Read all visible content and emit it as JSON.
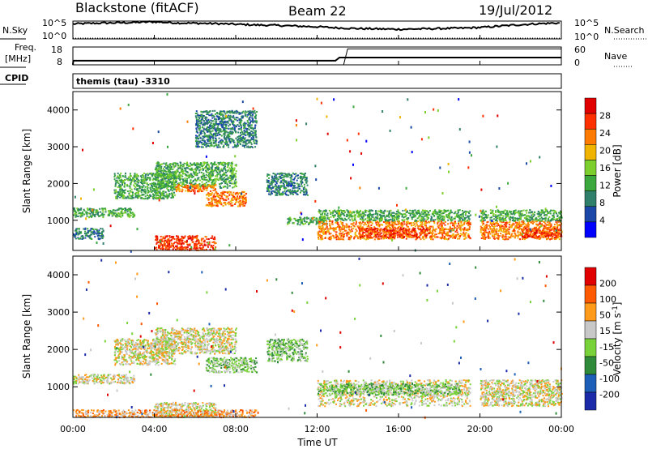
{
  "header": {
    "radar": "Blackstone (fitACF)",
    "beam": "Beam 22",
    "date": "19/Jul/2012"
  },
  "params": {
    "nsky_label": "N.Sky",
    "nsearch_label": "N.Search",
    "freq_label_line1": "Freq.",
    "freq_label_line2": "[MHz]",
    "nave_label": "Nave",
    "cpid_label": "CPID",
    "cpid_text": "themis (tau) -3310",
    "noise_ticks_left": [
      "10^5",
      "10^0"
    ],
    "noise_ticks_right": [
      "10^5",
      "10^0"
    ],
    "freq_ticks": [
      "18",
      "8"
    ],
    "nave_ticks": [
      "60",
      "0"
    ]
  },
  "colors": {
    "power": [
      "#0000ff",
      "#1a47a8",
      "#2f7f6a",
      "#3aa83c",
      "#7ccf2c",
      "#f0b400",
      "#ff7a00",
      "#ff3000",
      "#e00000"
    ],
    "velocity": [
      "#1a2aa8",
      "#1d5fb8",
      "#2f8a3a",
      "#7ad23a",
      "#c8c8c8",
      "#ff9a1a",
      "#ff5a00",
      "#e00000"
    ]
  },
  "chart_data": [
    {
      "type": "line",
      "name": "noise-panel",
      "xlim": [
        0,
        24
      ],
      "series": [
        {
          "name": "N.Sky",
          "x": [
            0,
            1,
            2,
            3,
            4,
            5,
            6,
            7,
            8,
            9,
            10,
            11,
            12,
            13,
            14,
            15,
            16,
            17,
            18,
            19,
            20,
            21,
            22,
            23,
            24
          ],
          "values": [
            4.2,
            4.4,
            4.5,
            4.6,
            4.8,
            4.5,
            4.4,
            4.3,
            4.1,
            3.9,
            3.8,
            3.6,
            3.4,
            3.1,
            2.9,
            2.8,
            2.7,
            2.8,
            2.9,
            3.0,
            3.2,
            3.6,
            4.0,
            4.3,
            4.5
          ]
        },
        {
          "name": "N.Search",
          "x": [
            0,
            24
          ],
          "values": [
            0,
            0
          ]
        }
      ]
    },
    {
      "type": "line",
      "name": "frequency-panel",
      "xlim": [
        0,
        24
      ],
      "series": [
        {
          "name": "Freq.",
          "x": [
            0,
            0.02,
            12.9,
            13.1,
            24
          ],
          "values": [
            8,
            10.3,
            10.3,
            12.1,
            12.1
          ]
        },
        {
          "name": "Nave",
          "x": [
            0,
            13.3,
            13.5,
            24
          ],
          "values": [
            0,
            0,
            54,
            54
          ]
        }
      ]
    },
    {
      "type": "heatmap",
      "name": "power-panel",
      "xlabel": "",
      "ylabel": "Slant Range [km]",
      "xlim": [
        0,
        24
      ],
      "ylim": [
        180,
        4500
      ],
      "yticks": [
        1000,
        2000,
        3000,
        4000
      ],
      "colorbar_label": "Power [dB]",
      "colorbar_ticks": [
        "28",
        "24",
        "20",
        "16",
        "12",
        "8",
        "4"
      ],
      "scatter_regions": [
        {
          "t0": 0.0,
          "t1": 3.0,
          "r0": 1100,
          "r1": 1350,
          "level": 3
        },
        {
          "t0": 0.0,
          "t1": 1.5,
          "r0": 500,
          "r1": 800,
          "level": 2
        },
        {
          "t0": 2.0,
          "t1": 5.0,
          "r0": 1600,
          "r1": 2300,
          "level": 3
        },
        {
          "t0": 4.0,
          "t1": 8.0,
          "r0": 1900,
          "r1": 2600,
          "level": 3
        },
        {
          "t0": 5.0,
          "t1": 7.0,
          "r0": 1800,
          "r1": 2000,
          "level": 6
        },
        {
          "t0": 6.5,
          "t1": 8.5,
          "r0": 1400,
          "r1": 1800,
          "level": 6
        },
        {
          "t0": 4.0,
          "t1": 7.0,
          "r0": 200,
          "r1": 600,
          "level": 7
        },
        {
          "t0": 6.0,
          "t1": 9.0,
          "r0": 3000,
          "r1": 4000,
          "level": 2
        },
        {
          "t0": 9.5,
          "t1": 11.5,
          "r0": 1700,
          "r1": 2300,
          "level": 2
        },
        {
          "t0": 10.5,
          "t1": 12.5,
          "r0": 900,
          "r1": 1100,
          "level": 3
        },
        {
          "t0": 12.0,
          "t1": 19.5,
          "r0": 500,
          "r1": 1000,
          "level": 6
        },
        {
          "t0": 12.0,
          "t1": 19.5,
          "r0": 1000,
          "r1": 1300,
          "level": 3
        },
        {
          "t0": 14.0,
          "t1": 17.5,
          "r0": 550,
          "r1": 800,
          "level": 7
        },
        {
          "t0": 20.0,
          "t1": 24.0,
          "r0": 500,
          "r1": 1000,
          "level": 6
        },
        {
          "t0": 20.0,
          "t1": 24.0,
          "r0": 1000,
          "r1": 1300,
          "level": 3
        },
        {
          "t0": 22.0,
          "t1": 24.0,
          "r0": 550,
          "r1": 800,
          "level": 7
        }
      ]
    },
    {
      "type": "heatmap",
      "name": "velocity-panel",
      "xlabel": "Time UT",
      "ylabel": "Slant Range [km]",
      "xlim": [
        0,
        24
      ],
      "ylim": [
        180,
        4500
      ],
      "yticks": [
        1000,
        2000,
        3000,
        4000
      ],
      "xticks": [
        "00:00",
        "04:00",
        "08:00",
        "12:00",
        "16:00",
        "20:00",
        "00:00"
      ],
      "colorbar_label": "Velocity [m s^-1]",
      "colorbar_ticks": [
        "200",
        "100",
        "50",
        "15",
        "-15",
        "-50",
        "-100",
        "-200"
      ],
      "scatter_regions": [
        {
          "t0": 0.0,
          "t1": 3.0,
          "r0": 1100,
          "r1": 1350,
          "level": 4
        },
        {
          "t0": 2.0,
          "t1": 5.0,
          "r0": 1600,
          "r1": 2300,
          "level": 4
        },
        {
          "t0": 4.0,
          "t1": 8.0,
          "r0": 1900,
          "r1": 2600,
          "level": 4
        },
        {
          "t0": 6.5,
          "t1": 9.0,
          "r0": 1400,
          "r1": 1800,
          "level": 3
        },
        {
          "t0": 4.0,
          "t1": 7.0,
          "r0": 200,
          "r1": 600,
          "level": 4
        },
        {
          "t0": 9.5,
          "t1": 11.5,
          "r0": 1700,
          "r1": 2300,
          "level": 3
        },
        {
          "t0": 12.0,
          "t1": 19.5,
          "r0": 500,
          "r1": 1200,
          "level": 4
        },
        {
          "t0": 20.0,
          "t1": 24.0,
          "r0": 500,
          "r1": 1200,
          "level": 4
        },
        {
          "t0": 0.0,
          "t1": 9.0,
          "r0": 200,
          "r1": 400,
          "level": 5
        },
        {
          "t0": 12.0,
          "t1": 19.0,
          "r0": 800,
          "r1": 1100,
          "level": 3
        }
      ]
    }
  ]
}
